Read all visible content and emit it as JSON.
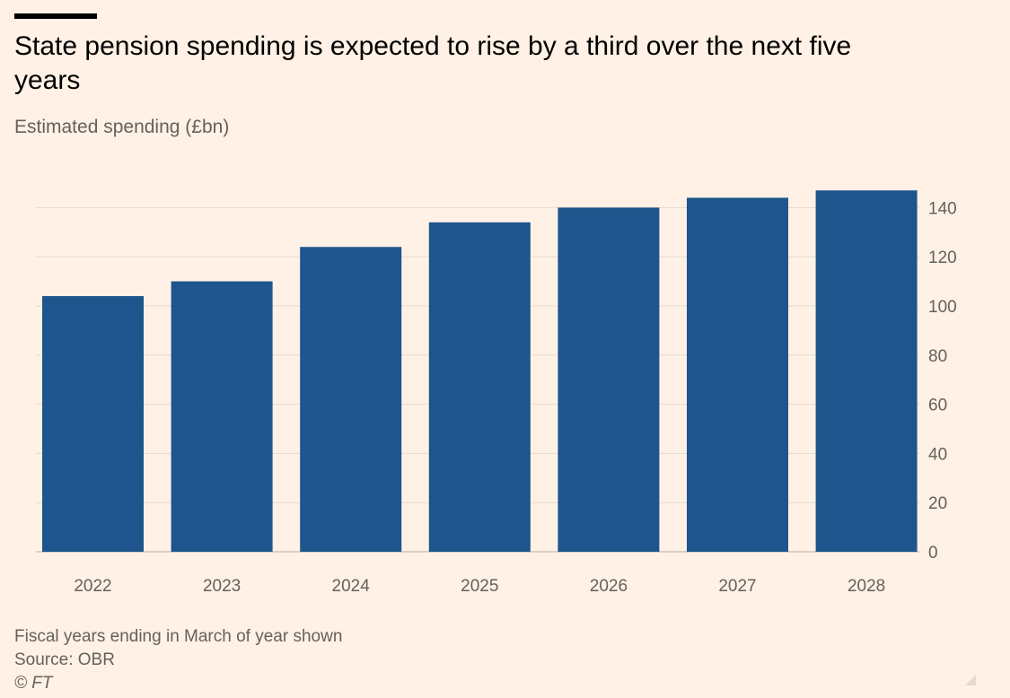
{
  "title": "State pension spending is expected to rise by a third over the next five years",
  "subtitle": "Estimated spending (£bn)",
  "footnotes": {
    "note": "Fiscal years ending in March of year shown",
    "source": "Source: OBR",
    "credit": "© FT"
  },
  "colors": {
    "background": "#fff1e5",
    "bar": "#1e558c",
    "gridline": "#e6d9ce",
    "axis_text": "#66605c"
  },
  "chart_data": {
    "type": "bar",
    "title": "State pension spending is expected to rise by a third over the next five years",
    "subtitle": "Estimated spending (£bn)",
    "categories": [
      "2022",
      "2023",
      "2024",
      "2025",
      "2026",
      "2027",
      "2028"
    ],
    "values": [
      104,
      110,
      124,
      134,
      140,
      144,
      147
    ],
    "ylim": [
      0,
      140
    ],
    "yticks": [
      0,
      20,
      40,
      60,
      80,
      100,
      120,
      140
    ],
    "y_axis_side": "right",
    "grid": true,
    "xlabel": "",
    "ylabel": ""
  }
}
